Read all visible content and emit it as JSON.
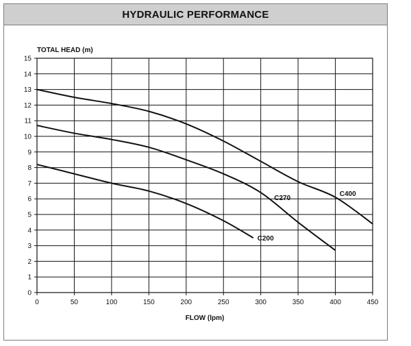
{
  "chart_data": {
    "type": "line",
    "title": "HYDRAULIC PERFORMANCE",
    "xlabel": "FLOW (lpm)",
    "ylabel": "TOTAL  HEAD (m)",
    "xlim": [
      0,
      450
    ],
    "ylim": [
      0,
      15
    ],
    "xticks": [
      0,
      50,
      100,
      150,
      200,
      250,
      300,
      350,
      400,
      450
    ],
    "yticks": [
      0,
      1,
      2,
      3,
      4,
      5,
      6,
      7,
      8,
      9,
      10,
      11,
      12,
      13,
      14,
      15
    ],
    "grid": true,
    "legend": "none",
    "line_color": "#111111",
    "series": [
      {
        "name": "C400",
        "x": [
          0,
          50,
          100,
          150,
          200,
          250,
          300,
          350,
          400,
          450
        ],
        "y": [
          13.0,
          12.5,
          12.1,
          11.6,
          10.8,
          9.7,
          8.4,
          7.1,
          6.1,
          4.4
        ]
      },
      {
        "name": "C270",
        "x": [
          0,
          50,
          100,
          150,
          200,
          250,
          300,
          350,
          400
        ],
        "y": [
          10.7,
          10.2,
          9.8,
          9.3,
          8.5,
          7.6,
          6.4,
          4.5,
          2.7
        ]
      },
      {
        "name": "C200",
        "x": [
          0,
          50,
          100,
          150,
          200,
          250,
          290
        ],
        "y": [
          8.2,
          7.6,
          7.0,
          6.5,
          5.7,
          4.6,
          3.5
        ]
      }
    ]
  }
}
